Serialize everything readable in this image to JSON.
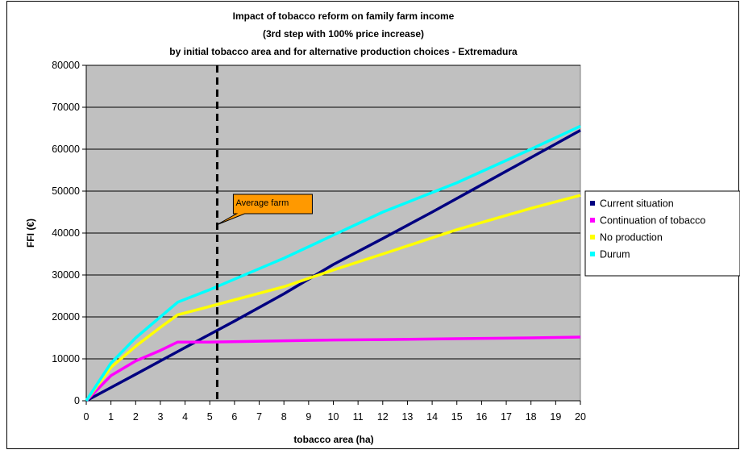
{
  "chart_data": {
    "type": "line",
    "title": [
      "Impact of  tobacco reform on family farm income",
      "(3rd step with 100% price increase)",
      "by initial tobacco area and for alternative production choices - Extremadura"
    ],
    "xlabel": "tobacco area (ha)",
    "ylabel": "FFI (€)",
    "xlim": [
      0,
      20
    ],
    "ylim": [
      0,
      80000
    ],
    "x_ticks": [
      0,
      1,
      2,
      3,
      4,
      5,
      6,
      7,
      8,
      9,
      10,
      11,
      12,
      13,
      14,
      15,
      16,
      17,
      18,
      19,
      20
    ],
    "y_ticks": [
      0,
      10000,
      20000,
      30000,
      40000,
      50000,
      60000,
      70000,
      80000
    ],
    "grid": "horizontal",
    "plot_background": "#c0c0c0",
    "legend_position": "right",
    "series": [
      {
        "name": "Current situation",
        "color": "#000080",
        "x": [
          0,
          2,
          4,
          6,
          8,
          10,
          12,
          14,
          16,
          18,
          20
        ],
        "y": [
          0,
          6300,
          12700,
          19000,
          25500,
          32500,
          38700,
          45000,
          51500,
          58000,
          64500
        ]
      },
      {
        "name": "Continuation of tobacco",
        "color": "#ff00ff",
        "x": [
          0,
          1,
          2,
          3,
          3.7,
          5,
          8,
          10,
          12,
          15,
          18,
          20
        ],
        "y": [
          0,
          6000,
          9500,
          12000,
          14000,
          14000,
          14300,
          14500,
          14600,
          14800,
          15000,
          15200
        ]
      },
      {
        "name": "No production",
        "color": "#ffff00",
        "x": [
          0,
          1,
          2,
          3,
          3.7,
          5,
          8,
          10,
          12,
          15,
          18,
          20
        ],
        "y": [
          0,
          8000,
          13000,
          17500,
          20500,
          22500,
          27200,
          31200,
          35000,
          40800,
          45900,
          49000
        ]
      },
      {
        "name": "Durum",
        "color": "#00ffff",
        "x": [
          0,
          1,
          2,
          3,
          3.7,
          5,
          8,
          10,
          12,
          15,
          18,
          20
        ],
        "y": [
          0,
          9000,
          15000,
          20000,
          23500,
          26500,
          34000,
          39500,
          45000,
          52000,
          60000,
          65500
        ]
      }
    ],
    "vertical_marker": {
      "x": 5.3,
      "style": "dashed",
      "color": "#000000"
    },
    "annotation": {
      "text": "Average farm",
      "x": 5.3,
      "y": 42000,
      "background": "#ff9900"
    }
  }
}
